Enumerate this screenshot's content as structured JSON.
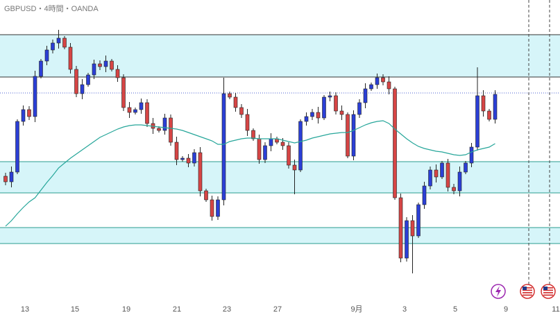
{
  "chart_data": {
    "type": "candlestick",
    "title": "GBPUSD・4時間・OANDA",
    "x_labels": [
      "13",
      "15",
      "19",
      "21",
      "23",
      "27",
      "9月",
      "3",
      "5",
      "9",
      "11"
    ],
    "open": [
      200,
      192,
      206,
      279,
      296,
      286,
      344,
      366,
      382,
      392,
      399,
      386,
      354,
      319,
      332,
      346,
      362,
      358,
      366,
      354,
      342,
      299,
      292,
      296,
      306,
      276,
      269,
      266,
      284,
      249,
      224,
      226,
      219,
      234,
      179,
      166,
      142,
      166,
      319,
      314,
      299,
      289,
      266,
      254,
      224,
      244,
      254,
      249,
      244,
      216,
      209,
      279,
      286,
      292,
      284,
      314,
      316,
      294,
      289,
      229,
      289,
      306,
      326,
      332,
      342,
      336,
      326,
      169,
      82,
      136,
      114,
      159,
      186,
      209,
      199,
      219,
      184,
      179,
      206,
      219,
      242,
      316,
      294,
      282
    ],
    "high": [
      205,
      214,
      282,
      302,
      301,
      352,
      369,
      388,
      397,
      411,
      402,
      392,
      359,
      340,
      349,
      368,
      367,
      374,
      369,
      360,
      347,
      307,
      299,
      312,
      311,
      284,
      272,
      290,
      289,
      257,
      229,
      232,
      239,
      242,
      182,
      172,
      171,
      342,
      322,
      320,
      304,
      297,
      269,
      260,
      249,
      262,
      257,
      255,
      249,
      224,
      282,
      292,
      297,
      300,
      317,
      322,
      321,
      302,
      292,
      295,
      311,
      334,
      335,
      348,
      347,
      344,
      329,
      175,
      141,
      144,
      162,
      192,
      214,
      217,
      222,
      225,
      189,
      214,
      222,
      248,
      357,
      324,
      297,
      324
    ],
    "low": [
      187,
      184,
      203,
      273,
      281,
      278,
      341,
      360,
      377,
      384,
      383,
      348,
      314,
      311,
      329,
      340,
      353,
      350,
      351,
      336,
      294,
      284,
      289,
      290,
      271,
      261,
      263,
      260,
      244,
      216,
      221,
      213,
      214,
      171,
      163,
      136,
      137,
      158,
      311,
      293,
      284,
      258,
      251,
      218,
      219,
      236,
      246,
      238,
      211,
      174,
      206,
      273,
      281,
      276,
      281,
      308,
      289,
      281,
      226,
      223,
      284,
      298,
      323,
      326,
      331,
      318,
      166,
      76,
      77,
      60,
      111,
      153,
      181,
      191,
      196,
      178,
      174,
      171,
      203,
      213,
      237,
      286,
      279,
      276
    ],
    "close": [
      192,
      206,
      279,
      296,
      286,
      344,
      366,
      382,
      392,
      399,
      386,
      354,
      319,
      332,
      346,
      362,
      358,
      366,
      354,
      342,
      299,
      292,
      296,
      306,
      276,
      269,
      266,
      284,
      249,
      224,
      226,
      219,
      234,
      179,
      166,
      142,
      166,
      319,
      314,
      299,
      289,
      266,
      254,
      224,
      244,
      254,
      249,
      244,
      216,
      209,
      279,
      286,
      292,
      284,
      314,
      316,
      294,
      289,
      229,
      289,
      306,
      326,
      332,
      342,
      336,
      326,
      169,
      82,
      136,
      114,
      159,
      186,
      209,
      199,
      219,
      184,
      179,
      206,
      219,
      242,
      316,
      294,
      282,
      318
    ],
    "ma": {
      "color": "#26a69a",
      "values": [
        128,
        136,
        146,
        155,
        163,
        169,
        180,
        191,
        201,
        212,
        219,
        226,
        232,
        238,
        244,
        250,
        256,
        260,
        264,
        268,
        271,
        273,
        274,
        274,
        273,
        272,
        271,
        270,
        269,
        268,
        266,
        263,
        260,
        257,
        254,
        251,
        246,
        246,
        250,
        252,
        254,
        255,
        255,
        254,
        254,
        254,
        254,
        252,
        250,
        248,
        250,
        252,
        255,
        257,
        259,
        261,
        262,
        263,
        263,
        266,
        270,
        274,
        277,
        279,
        280,
        276,
        268,
        261,
        254,
        248,
        243,
        240,
        238,
        236,
        235,
        233,
        231,
        230,
        231,
        235,
        238,
        240,
        242,
        247
      ]
    },
    "zones": [
      {
        "low": 343,
        "high": 404
      },
      {
        "low": 176,
        "high": 221
      },
      {
        "low": 103,
        "high": 126
      }
    ],
    "level": 320,
    "up_color": "#2b3fd6",
    "down_color": "#d64545",
    "ylim": [
      0,
      454
    ]
  }
}
